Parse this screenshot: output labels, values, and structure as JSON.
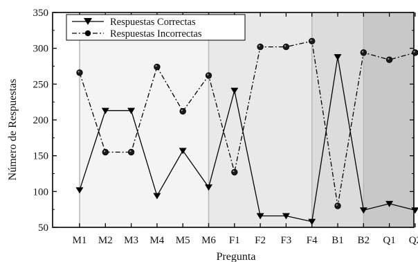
{
  "chart_data": {
    "type": "line",
    "title": "",
    "xlabel": "Pregunta",
    "ylabel": "Número de Respuestas",
    "categories": [
      "M1",
      "M2",
      "M3",
      "M4",
      "M5",
      "M6",
      "F1",
      "F2",
      "F3",
      "F4",
      "B1",
      "B2",
      "Q1",
      "Q2"
    ],
    "ylim": [
      50,
      350
    ],
    "yticks": [
      50,
      100,
      150,
      200,
      250,
      300,
      350
    ],
    "grid": false,
    "legend_position": "top-left",
    "series": [
      {
        "name": "Respuestas Correctas",
        "marker": "triangle-down",
        "line_style": "solid",
        "color": "#000000",
        "values": [
          102,
          213,
          213,
          94,
          157,
          106,
          241,
          66,
          66,
          58,
          288,
          74,
          83,
          74
        ]
      },
      {
        "name": "Respuestas Incorrectas",
        "marker": "circle",
        "line_style": "dash-dot",
        "color": "#000000",
        "values": [
          266,
          155,
          155,
          274,
          212,
          262,
          127,
          302,
          302,
          310,
          80,
          294,
          284,
          294
        ]
      }
    ],
    "shaded_regions": [
      {
        "from": "M1",
        "to": "M6",
        "color": "#f4f4f4"
      },
      {
        "from": "M6",
        "to": "F4",
        "color": "#e9e9e9"
      },
      {
        "from": "F4",
        "to": "B2",
        "color": "#dcdcdc"
      },
      {
        "from": "B2",
        "to": "Q2",
        "color": "#c8c8c8"
      }
    ]
  }
}
